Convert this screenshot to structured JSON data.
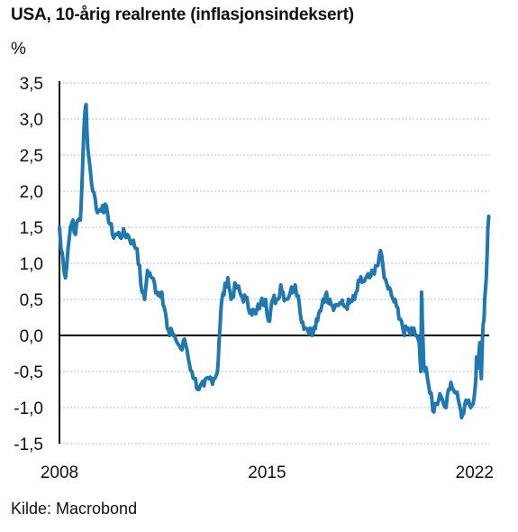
{
  "title": "USA, 10-årig realrente (inflasjonsindeksert)",
  "unit": "%",
  "source": "Kilde: Macrobond",
  "colors": {
    "series": "#1f78b0",
    "zero": "#000000",
    "grid": "#bfbfbf",
    "axis": "#000000"
  },
  "chart_data": {
    "type": "line",
    "title": "USA, 10-årig realrente (inflasjonsindeksert)",
    "ylabel": "%",
    "xlabel": "",
    "ylim": [
      -1.5,
      3.5
    ],
    "xlim": [
      "2008-01-01",
      "2022-06-30"
    ],
    "grid": "horizontal dotted",
    "legend": "none",
    "yticks": [
      "3,5",
      "3,0",
      "2,5",
      "2,0",
      "1,5",
      "1,0",
      "0,5",
      "0,0",
      "-0,5",
      "-1,0",
      "-1,5"
    ],
    "ytick_values": [
      3.5,
      3.0,
      2.5,
      2.0,
      1.5,
      1.0,
      0.5,
      0.0,
      -0.5,
      -1.0,
      -1.5
    ],
    "xticks": [
      "2008",
      "2015",
      "2022"
    ],
    "xtick_dates": [
      "2008-01-01",
      "2015-01-01",
      "2022-01-01"
    ],
    "series": [
      {
        "x": [
          "2008-01-01",
          "2008-01-20",
          "2008-02-10",
          "2008-03-15",
          "2008-04-15",
          "2008-05-15",
          "2008-06-15",
          "2008-07-15",
          "2008-08-15",
          "2008-09-15",
          "2008-10-01",
          "2008-10-20",
          "2008-11-10",
          "2008-11-25",
          "2008-12-15",
          "2009-01-15",
          "2009-02-15",
          "2009-03-15",
          "2009-04-15",
          "2009-06-15",
          "2009-08-15",
          "2009-10-15",
          "2009-12-15",
          "2010-02-15",
          "2010-04-15",
          "2010-06-15",
          "2010-08-15",
          "2010-10-15",
          "2010-11-15",
          "2010-12-20",
          "2011-02-15",
          "2011-04-15",
          "2011-06-15",
          "2011-08-01",
          "2011-08-20",
          "2011-09-20",
          "2011-10-20",
          "2011-11-20",
          "2011-12-20",
          "2012-01-20",
          "2012-02-20",
          "2012-03-20",
          "2012-04-20",
          "2012-05-20",
          "2012-06-20",
          "2012-07-20",
          "2012-09-15",
          "2012-11-15",
          "2013-01-15",
          "2013-03-15",
          "2013-05-01",
          "2013-05-20",
          "2013-06-10",
          "2013-06-25",
          "2013-08-15",
          "2013-09-05",
          "2013-10-15",
          "2013-12-15",
          "2014-02-15",
          "2014-04-15",
          "2014-06-15",
          "2014-08-15",
          "2014-10-15",
          "2014-12-15",
          "2015-01-20",
          "2015-03-15",
          "2015-05-15",
          "2015-06-20",
          "2015-08-15",
          "2015-10-15",
          "2015-12-15",
          "2016-01-20",
          "2016-02-15",
          "2016-04-15",
          "2016-06-15",
          "2016-07-10",
          "2016-09-15",
          "2016-11-20",
          "2016-12-20",
          "2017-02-15",
          "2017-04-15",
          "2017-06-15",
          "2017-08-15",
          "2017-10-15",
          "2017-12-15",
          "2018-02-15",
          "2018-04-15",
          "2018-06-15",
          "2018-08-15",
          "2018-10-15",
          "2018-11-15",
          "2018-12-15",
          "2019-01-20",
          "2019-03-15",
          "2019-05-15",
          "2019-07-15",
          "2019-08-20",
          "2019-09-20",
          "2019-10-20",
          "2019-12-15",
          "2020-01-20",
          "2020-02-20",
          "2020-03-10",
          "2020-03-19",
          "2020-03-28",
          "2020-04-15",
          "2020-05-15",
          "2020-06-15",
          "2020-07-15",
          "2020-08-05",
          "2020-09-15",
          "2020-10-15",
          "2020-11-15",
          "2020-12-15",
          "2021-01-15",
          "2021-02-15",
          "2021-03-15",
          "2021-04-15",
          "2021-05-15",
          "2021-06-15",
          "2021-07-15",
          "2021-08-05",
          "2021-09-15",
          "2021-10-20",
          "2021-11-15",
          "2021-12-15",
          "2022-01-10",
          "2022-01-25",
          "2022-02-15",
          "2022-03-07",
          "2022-03-25",
          "2022-04-10",
          "2022-04-25",
          "2022-05-06",
          "2022-05-25",
          "2022-06-14",
          "2022-06-25"
        ],
        "y": [
          1.5,
          1.2,
          1.1,
          0.8,
          1.2,
          1.5,
          1.6,
          1.4,
          1.6,
          1.6,
          2.0,
          2.6,
          3.1,
          3.2,
          2.6,
          2.3,
          2.0,
          1.9,
          1.7,
          1.8,
          1.7,
          1.4,
          1.4,
          1.4,
          1.4,
          1.3,
          1.2,
          0.6,
          0.5,
          0.9,
          0.8,
          0.6,
          0.6,
          0.3,
          0.1,
          0.0,
          0.05,
          0.0,
          -0.1,
          -0.15,
          -0.2,
          -0.05,
          -0.2,
          -0.4,
          -0.5,
          -0.6,
          -0.75,
          -0.7,
          -0.6,
          -0.6,
          -0.5,
          -0.1,
          0.3,
          0.5,
          0.7,
          0.8,
          0.5,
          0.7,
          0.55,
          0.5,
          0.35,
          0.3,
          0.45,
          0.5,
          0.2,
          0.5,
          0.5,
          0.7,
          0.5,
          0.6,
          0.7,
          0.55,
          0.3,
          0.1,
          0.1,
          0.0,
          0.2,
          0.5,
          0.55,
          0.5,
          0.4,
          0.45,
          0.4,
          0.45,
          0.5,
          0.75,
          0.75,
          0.8,
          0.85,
          1.1,
          1.1,
          0.8,
          0.7,
          0.55,
          0.4,
          0.2,
          0.0,
          0.1,
          0.05,
          0.1,
          0.0,
          -0.1,
          -0.5,
          0.6,
          0.2,
          -0.4,
          -0.45,
          -0.7,
          -0.8,
          -1.05,
          -0.95,
          -0.9,
          -0.85,
          -0.95,
          -1.0,
          -0.75,
          -0.65,
          -0.75,
          -0.8,
          -0.9,
          -1.05,
          -1.1,
          -0.9,
          -0.9,
          -1.0,
          -0.95,
          -0.7,
          -0.3,
          -0.45,
          -0.1,
          -0.6,
          0.0,
          0.2,
          0.5,
          0.8,
          1.5,
          1.65
        ]
      }
    ]
  }
}
